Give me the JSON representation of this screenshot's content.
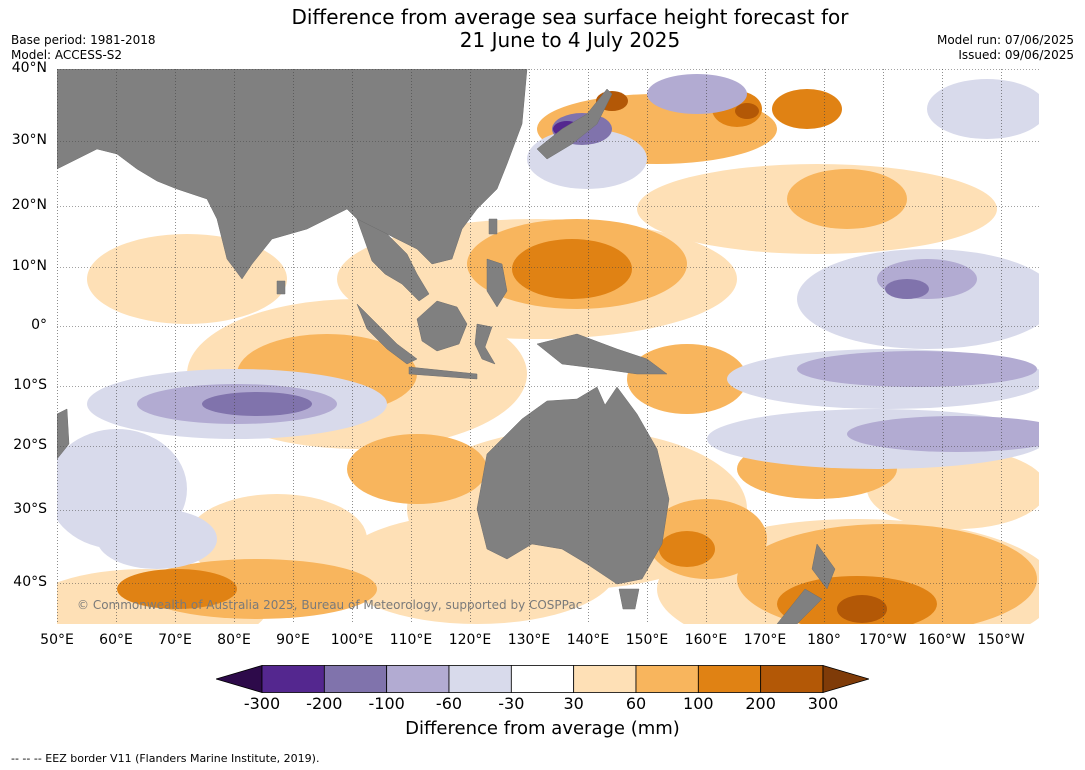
{
  "title": {
    "line1": "Difference from average sea surface height forecast for",
    "line2": "21 June to 4 July 2025"
  },
  "meta": {
    "base_period": "Base period: 1981-2018",
    "model": "Model: ACCESS-S2",
    "model_run": "Model run: 07/06/2025",
    "issued": "Issued: 09/06/2025"
  },
  "map": {
    "lat_labels": [
      "40°N",
      "30°N",
      "20°N",
      "10°N",
      "0°",
      "10°S",
      "20°S",
      "30°S",
      "40°S"
    ],
    "lon_labels": [
      "50°E",
      "60°E",
      "70°E",
      "80°E",
      "90°E",
      "100°E",
      "110°E",
      "120°E",
      "130°E",
      "140°E",
      "150°E",
      "160°E",
      "170°E",
      "180°",
      "170°W",
      "160°W",
      "150°W"
    ],
    "copyright": "© Commonwealth of Australia 2025, Bureau of Meteorology, supported by COSPPac",
    "colors": {
      "land": "#808080",
      "ocean_neutral": "#ffffff",
      "gridline": "#444444"
    }
  },
  "legend": {
    "labels": [
      "-300",
      "-200",
      "-100",
      "-60",
      "-30",
      "30",
      "60",
      "100",
      "200",
      "300"
    ],
    "colors": [
      "#2d0a4a",
      "#54278f",
      "#8073ac",
      "#b2abd2",
      "#d8daeb",
      "#ffffff",
      "#fee0b6",
      "#f8b55d",
      "#e08214",
      "#b35806",
      "#7f3b08"
    ],
    "title": "Difference from average (mm)"
  },
  "footnote": "--  --  -- EEZ border V11 (Flanders Marine Institute, 2019)."
}
